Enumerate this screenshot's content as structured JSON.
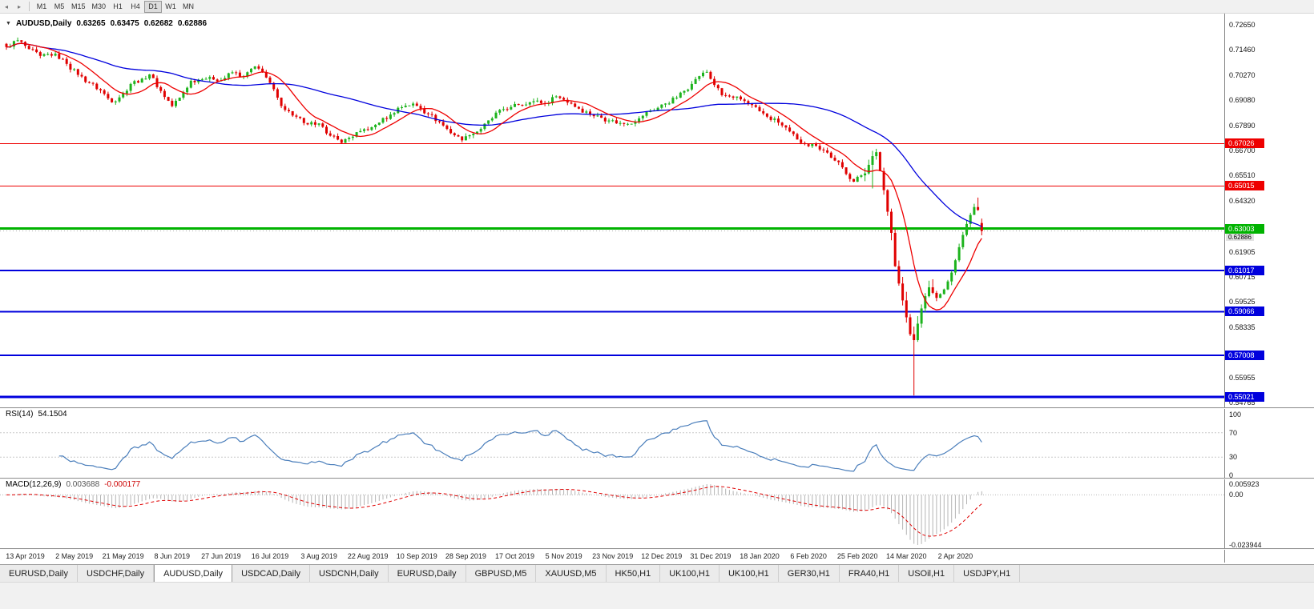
{
  "toolbar": {
    "timeframes": [
      "M1",
      "M5",
      "M15",
      "M30",
      "H1",
      "H4",
      "D1",
      "W1",
      "MN"
    ],
    "active_timeframe": "D1"
  },
  "header": {
    "symbol": "AUDUSD,Daily",
    "ohlc": {
      "open": "0.63265",
      "high": "0.63475",
      "low": "0.62682",
      "close": "0.62886"
    }
  },
  "price_scale": {
    "top_value": 0.7265,
    "bottom_value": 0.54765,
    "ticks": [
      "0.72650",
      "0.71460",
      "0.70270",
      "0.69080",
      "0.67890",
      "0.66700",
      "0.65510",
      "0.64320",
      "0.61905",
      "0.60715",
      "0.59525",
      "0.58335",
      "0.55955",
      "0.54765"
    ]
  },
  "hlines": [
    {
      "value": 0.67026,
      "label": "0.67026",
      "color": "#ee0000",
      "width": 1
    },
    {
      "value": 0.65015,
      "label": "0.65015",
      "color": "#ee0000",
      "width": 1
    },
    {
      "value": 0.63003,
      "label": "0.63003",
      "color": "#00b300",
      "width": 3
    },
    {
      "value": 0.61017,
      "label": "0.61017",
      "color": "#0000dd",
      "width": 2
    },
    {
      "value": 0.59066,
      "label": "0.59066",
      "color": "#0000dd",
      "width": 2
    },
    {
      "value": 0.57008,
      "label": "0.57008",
      "color": "#0000dd",
      "width": 2
    },
    {
      "value": 0.55021,
      "label": "0.55021",
      "color": "#0000dd",
      "width": 3
    }
  ],
  "bid": {
    "value": 0.62886,
    "label": "0.62886"
  },
  "chart_data": {
    "type": "candlestick",
    "symbol": "AUDUSD",
    "period": "Daily",
    "num_candles": 260,
    "y_range": [
      0.54765,
      0.7265
    ],
    "last_candle": {
      "open": 0.63265,
      "high": 0.63475,
      "low": 0.62682,
      "close": 0.62886
    },
    "close_anchors": [
      [
        0,
        0.716
      ],
      [
        3,
        0.7192
      ],
      [
        6,
        0.715
      ],
      [
        9,
        0.7118
      ],
      [
        13,
        0.7128
      ],
      [
        16,
        0.708
      ],
      [
        19,
        0.7028
      ],
      [
        22,
        0.699
      ],
      [
        25,
        0.6955
      ],
      [
        28,
        0.6898
      ],
      [
        31,
        0.694
      ],
      [
        33,
        0.6985
      ],
      [
        36,
        0.701
      ],
      [
        38,
        0.703
      ],
      [
        41,
        0.6952
      ],
      [
        44,
        0.688
      ],
      [
        46,
        0.692
      ],
      [
        49,
        0.7
      ],
      [
        52,
        0.7008
      ],
      [
        54,
        0.7018
      ],
      [
        57,
        0.7002
      ],
      [
        60,
        0.704
      ],
      [
        63,
        0.7022
      ],
      [
        66,
        0.7068
      ],
      [
        68,
        0.704
      ],
      [
        70,
        0.699
      ],
      [
        72,
        0.692
      ],
      [
        74,
        0.6862
      ],
      [
        77,
        0.683
      ],
      [
        79,
        0.68
      ],
      [
        82,
        0.6792
      ],
      [
        84,
        0.6782
      ],
      [
        86,
        0.674
      ],
      [
        89,
        0.6706
      ],
      [
        91,
        0.673
      ],
      [
        94,
        0.6762
      ],
      [
        97,
        0.678
      ],
      [
        99,
        0.6802
      ],
      [
        102,
        0.684
      ],
      [
        104,
        0.6872
      ],
      [
        106,
        0.6882
      ],
      [
        108,
        0.6892
      ],
      [
        110,
        0.6868
      ],
      [
        112,
        0.6842
      ],
      [
        115,
        0.6805
      ],
      [
        117,
        0.6772
      ],
      [
        119,
        0.6742
      ],
      [
        121,
        0.6718
      ],
      [
        123,
        0.6742
      ],
      [
        126,
        0.6772
      ],
      [
        129,
        0.6822
      ],
      [
        131,
        0.6862
      ],
      [
        134,
        0.6876
      ],
      [
        136,
        0.6886
      ],
      [
        139,
        0.6898
      ],
      [
        141,
        0.6906
      ],
      [
        143,
        0.689
      ],
      [
        146,
        0.6926
      ],
      [
        148,
        0.691
      ],
      [
        150,
        0.6892
      ],
      [
        152,
        0.6868
      ],
      [
        155,
        0.6842
      ],
      [
        158,
        0.6825
      ],
      [
        160,
        0.6812
      ],
      [
        163,
        0.68
      ],
      [
        165,
        0.6796
      ],
      [
        168,
        0.6822
      ],
      [
        170,
        0.6852
      ],
      [
        173,
        0.6872
      ],
      [
        175,
        0.6892
      ],
      [
        178,
        0.692
      ],
      [
        180,
        0.6952
      ],
      [
        182,
        0.6985
      ],
      [
        184,
        0.7022
      ],
      [
        186,
        0.7042
      ],
      [
        188,
        0.698
      ],
      [
        190,
        0.6932
      ],
      [
        193,
        0.692
      ],
      [
        195,
        0.6912
      ],
      [
        198,
        0.6885
      ],
      [
        200,
        0.6856
      ],
      [
        202,
        0.683
      ],
      [
        205,
        0.6802
      ],
      [
        208,
        0.676
      ],
      [
        210,
        0.6722
      ],
      [
        212,
        0.67
      ],
      [
        215,
        0.6692
      ],
      [
        218,
        0.666
      ],
      [
        220,
        0.6622
      ],
      [
        222,
        0.659
      ],
      [
        225,
        0.6522
      ],
      [
        227,
        0.6552
      ],
      [
        229,
        0.6602
      ],
      [
        231,
        0.6662
      ],
      [
        232,
        0.6572
      ],
      [
        233,
        0.6482
      ],
      [
        234,
        0.638
      ],
      [
        235,
        0.628
      ],
      [
        236,
        0.6122
      ],
      [
        237,
        0.604
      ],
      [
        238,
        0.596
      ],
      [
        239,
        0.588
      ],
      [
        240,
        0.58
      ],
      [
        241,
        0.5772
      ],
      [
        242,
        0.585
      ],
      [
        243,
        0.5922
      ],
      [
        244,
        0.598
      ],
      [
        245,
        0.6022
      ],
      [
        246,
        0.5996
      ],
      [
        247,
        0.5972
      ],
      [
        248,
        0.599
      ],
      [
        249,
        0.6012
      ],
      [
        250,
        0.605
      ],
      [
        251,
        0.6092
      ],
      [
        252,
        0.615
      ],
      [
        253,
        0.6212
      ],
      [
        254,
        0.627
      ],
      [
        255,
        0.6322
      ],
      [
        256,
        0.6365
      ],
      [
        257,
        0.6402
      ],
      [
        258,
        0.6388
      ],
      [
        259,
        0.62886
      ]
    ],
    "overrides": {
      "230": {
        "high": 0.6668,
        "low": 0.649
      },
      "231": {
        "high": 0.6678
      },
      "236": {
        "high": 0.63
      },
      "241": {
        "low": 0.551
      },
      "258": {
        "high": 0.6447
      }
    },
    "ma_fast": {
      "period": 10,
      "color": "#ee0000"
    },
    "ma_slow": {
      "period": 45,
      "color": "#0000dd"
    }
  },
  "rsi": {
    "label": "RSI(14)",
    "value": "54.1504",
    "levels": [
      "100",
      "70",
      "30",
      "0"
    ],
    "level_values": [
      100,
      70,
      30,
      0
    ],
    "line_color": "#4a7ebb"
  },
  "macd": {
    "label": "MACD(12,26,9)",
    "value_main": "0.003688",
    "value_signal": "-0.000177",
    "scale": {
      "top": "0.005923",
      "zero": "0.00",
      "bottom": "-0.023944"
    },
    "hist_color": "#b4b4b4",
    "signal_color": "#e00000"
  },
  "date_axis": {
    "labels": [
      "13 Apr 2019",
      "2 May 2019",
      "21 May 2019",
      "8 Jun 2019",
      "27 Jun 2019",
      "16 Jul 2019",
      "3 Aug 2019",
      "22 Aug 2019",
      "10 Sep 2019",
      "28 Sep 2019",
      "17 Oct 2019",
      "5 Nov 2019",
      "23 Nov 2019",
      "12 Dec 2019",
      "31 Dec 2019",
      "18 Jan 2020",
      "6 Feb 2020",
      "25 Feb 2020",
      "14 Mar 2020",
      "2 Apr 2020"
    ],
    "candle_indices": [
      5,
      18,
      31,
      44,
      57,
      70,
      83,
      96,
      109,
      122,
      135,
      148,
      161,
      174,
      187,
      200,
      213,
      226,
      239,
      252
    ]
  },
  "tabs": {
    "items": [
      "EURUSD,Daily",
      "USDCHF,Daily",
      "AUDUSD,Daily",
      "USDCAD,Daily",
      "USDCNH,Daily",
      "EURUSD,Daily",
      "GBPUSD,M5",
      "XAUUSD,M5",
      "HK50,H1",
      "UK100,H1",
      "UK100,H1",
      "GER30,H1",
      "FRA40,H1",
      "USOil,H1",
      "USDJPY,H1"
    ],
    "active_index": 2
  },
  "colors": {
    "up_candle": "#1db31d",
    "down_candle": "#e00000",
    "background": "#ffffff"
  }
}
